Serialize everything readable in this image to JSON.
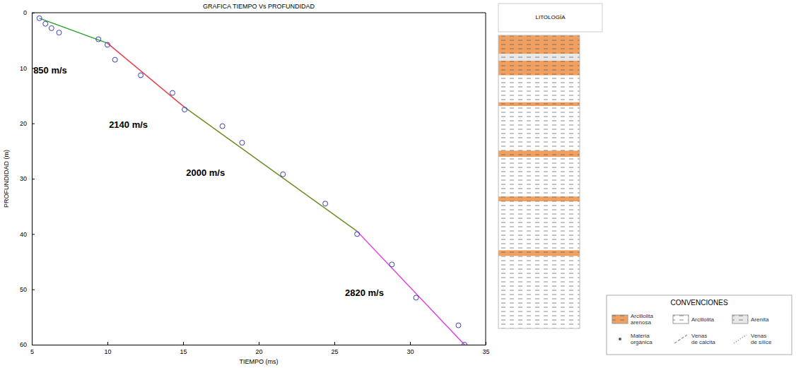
{
  "chart_data": {
    "type": "scatter",
    "title": "GRAFICA TIEMPO Vs PROFUNDIDAD",
    "x_label": "TIEMPO (ms)",
    "y_label": "PROFUNDIDAD (m)",
    "xlim": [
      5,
      35
    ],
    "xticks": [
      5,
      10,
      15,
      20,
      25,
      30,
      35
    ],
    "ylim": [
      0,
      60
    ],
    "yticks": [
      0,
      10,
      20,
      30,
      40,
      50,
      60
    ],
    "series": [
      {
        "type": "scatter",
        "marker": "circle",
        "color": "#3a3ac8",
        "x": [
          5.5,
          5.9,
          6.3,
          6.8,
          9.4,
          10.0,
          10.5,
          12.2,
          14.3,
          15.1,
          17.6,
          18.9,
          21.6,
          24.4,
          26.5,
          28.8,
          30.4,
          33.2,
          33.6
        ],
        "values": [
          1.0,
          2.0,
          2.8,
          3.6,
          4.8,
          5.8,
          8.5,
          11.3,
          14.5,
          17.5,
          20.5,
          23.5,
          29.2,
          34.5,
          40.0,
          45.5,
          51.5,
          56.5,
          60.0
        ]
      },
      {
        "type": "line",
        "color": "#2ca02c",
        "x": [
          5.5,
          10.0
        ],
        "values": [
          1.0,
          5.5
        ]
      },
      {
        "type": "line",
        "color": "#e8404a",
        "x": [
          10.0,
          15.1
        ],
        "values": [
          5.5,
          17.1
        ]
      },
      {
        "type": "line",
        "color": "#6b8e23",
        "x": [
          15.1,
          26.5
        ],
        "values": [
          17.1,
          39.5
        ]
      },
      {
        "type": "line",
        "color": "#e040e0",
        "x": [
          26.5,
          33.6
        ],
        "values": [
          39.5,
          60.0
        ]
      }
    ],
    "annotations": [
      {
        "text": "850 m/s",
        "x": 5.1,
        "y": 10.5
      },
      {
        "text": "2140 m/s",
        "x": 10.1,
        "y": 20.4
      },
      {
        "text": "2000 m/s",
        "x": 15.2,
        "y": 29.0
      },
      {
        "text": "2820 m/s",
        "x": 25.7,
        "y": 50.7
      }
    ],
    "lithology": {
      "title": "LITOLOGÍA",
      "layers": [
        {
          "top": 0.0,
          "bottom": 3.8,
          "rock": 0
        },
        {
          "top": 3.8,
          "bottom": 5.2,
          "rock": 2
        },
        {
          "top": 5.2,
          "bottom": 8.2,
          "rock": 0
        },
        {
          "top": 8.2,
          "bottom": 13.7,
          "rock": 1
        },
        {
          "top": 13.7,
          "bottom": 14.5,
          "rock": 0
        },
        {
          "top": 14.5,
          "bottom": 23.6,
          "rock": 1
        },
        {
          "top": 23.6,
          "bottom": 24.9,
          "rock": 0
        },
        {
          "top": 24.9,
          "bottom": 33.0,
          "rock": 1
        },
        {
          "top": 33.0,
          "bottom": 34.0,
          "rock": 0
        },
        {
          "top": 34.0,
          "bottom": 44.0,
          "rock": 1
        },
        {
          "top": 44.0,
          "bottom": 45.2,
          "rock": 0
        },
        {
          "top": 45.2,
          "bottom": 60.0,
          "rock": 1
        }
      ]
    },
    "conventions": {
      "title": "CONVENCIONES",
      "items": [
        {
          "label": "Arcillolita arenosa",
          "color": "#f0a060"
        },
        {
          "label": "Arcillolita",
          "color": "#ffffff"
        },
        {
          "label": "Arenita",
          "color": "#e8e8e8"
        },
        {
          "label": "Materia orgánica",
          "marker": "dot",
          "color": "#555555"
        },
        {
          "label": "Venas de calcita",
          "line_style": "dashed",
          "color": "#a0a0a0"
        },
        {
          "label": "Venas de sílice",
          "line_style": "dotted",
          "color": "#a0a0a0"
        }
      ]
    }
  }
}
